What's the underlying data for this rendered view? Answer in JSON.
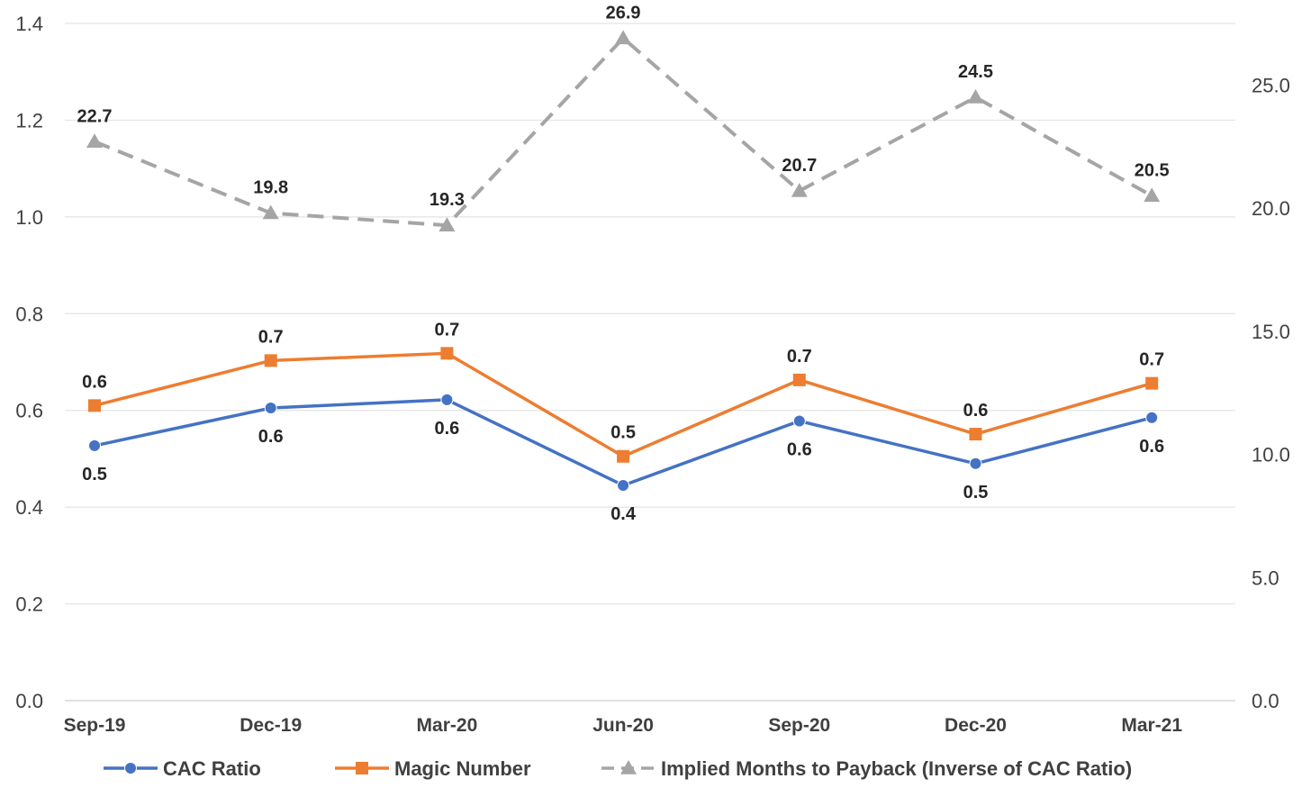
{
  "chart_data": {
    "type": "line",
    "title": "",
    "xlabel": "",
    "ylabel": "",
    "categories": [
      "Sep-19",
      "Dec-19",
      "Mar-20",
      "Jun-20",
      "Sep-20",
      "Dec-20",
      "Mar-21"
    ],
    "y_left": {
      "ylim": [
        0,
        1.4
      ],
      "ticks": [
        "0.0",
        "0.2",
        "0.4",
        "0.6",
        "0.8",
        "1.0",
        "1.2",
        "1.4"
      ]
    },
    "y_right": {
      "ylim": [
        0,
        27.5
      ],
      "ticks": [
        "0.0",
        "5.0",
        "10.0",
        "15.0",
        "20.0",
        "25.0"
      ]
    },
    "grid": true,
    "legend_position": "bottom",
    "series": [
      {
        "name": "CAC Ratio",
        "axis": "left",
        "color": "#4472C4",
        "marker": "circle",
        "dash": "solid",
        "values": [
          0.527,
          0.605,
          0.622,
          0.445,
          0.578,
          0.49,
          0.585
        ],
        "labels": [
          "0.5",
          "0.6",
          "0.6",
          "0.4",
          "0.6",
          "0.5",
          "0.6"
        ],
        "label_position": "below"
      },
      {
        "name": "Magic Number",
        "axis": "left",
        "color": "#ED7D31",
        "marker": "square",
        "dash": "solid",
        "values": [
          0.61,
          0.703,
          0.718,
          0.505,
          0.663,
          0.551,
          0.656
        ],
        "labels": [
          "0.6",
          "0.7",
          "0.7",
          "0.5",
          "0.7",
          "0.6",
          "0.7"
        ],
        "label_position": "above"
      },
      {
        "name": "Implied Months to Payback (Inverse of CAC Ratio)",
        "axis": "right",
        "color": "#A5A5A5",
        "marker": "triangle",
        "dash": "dashed",
        "values": [
          22.7,
          19.8,
          19.3,
          26.9,
          20.7,
          24.5,
          20.5
        ],
        "labels": [
          "22.7",
          "19.8",
          "19.3",
          "26.9",
          "20.7",
          "24.5",
          "20.5"
        ],
        "label_position": "above"
      }
    ]
  }
}
